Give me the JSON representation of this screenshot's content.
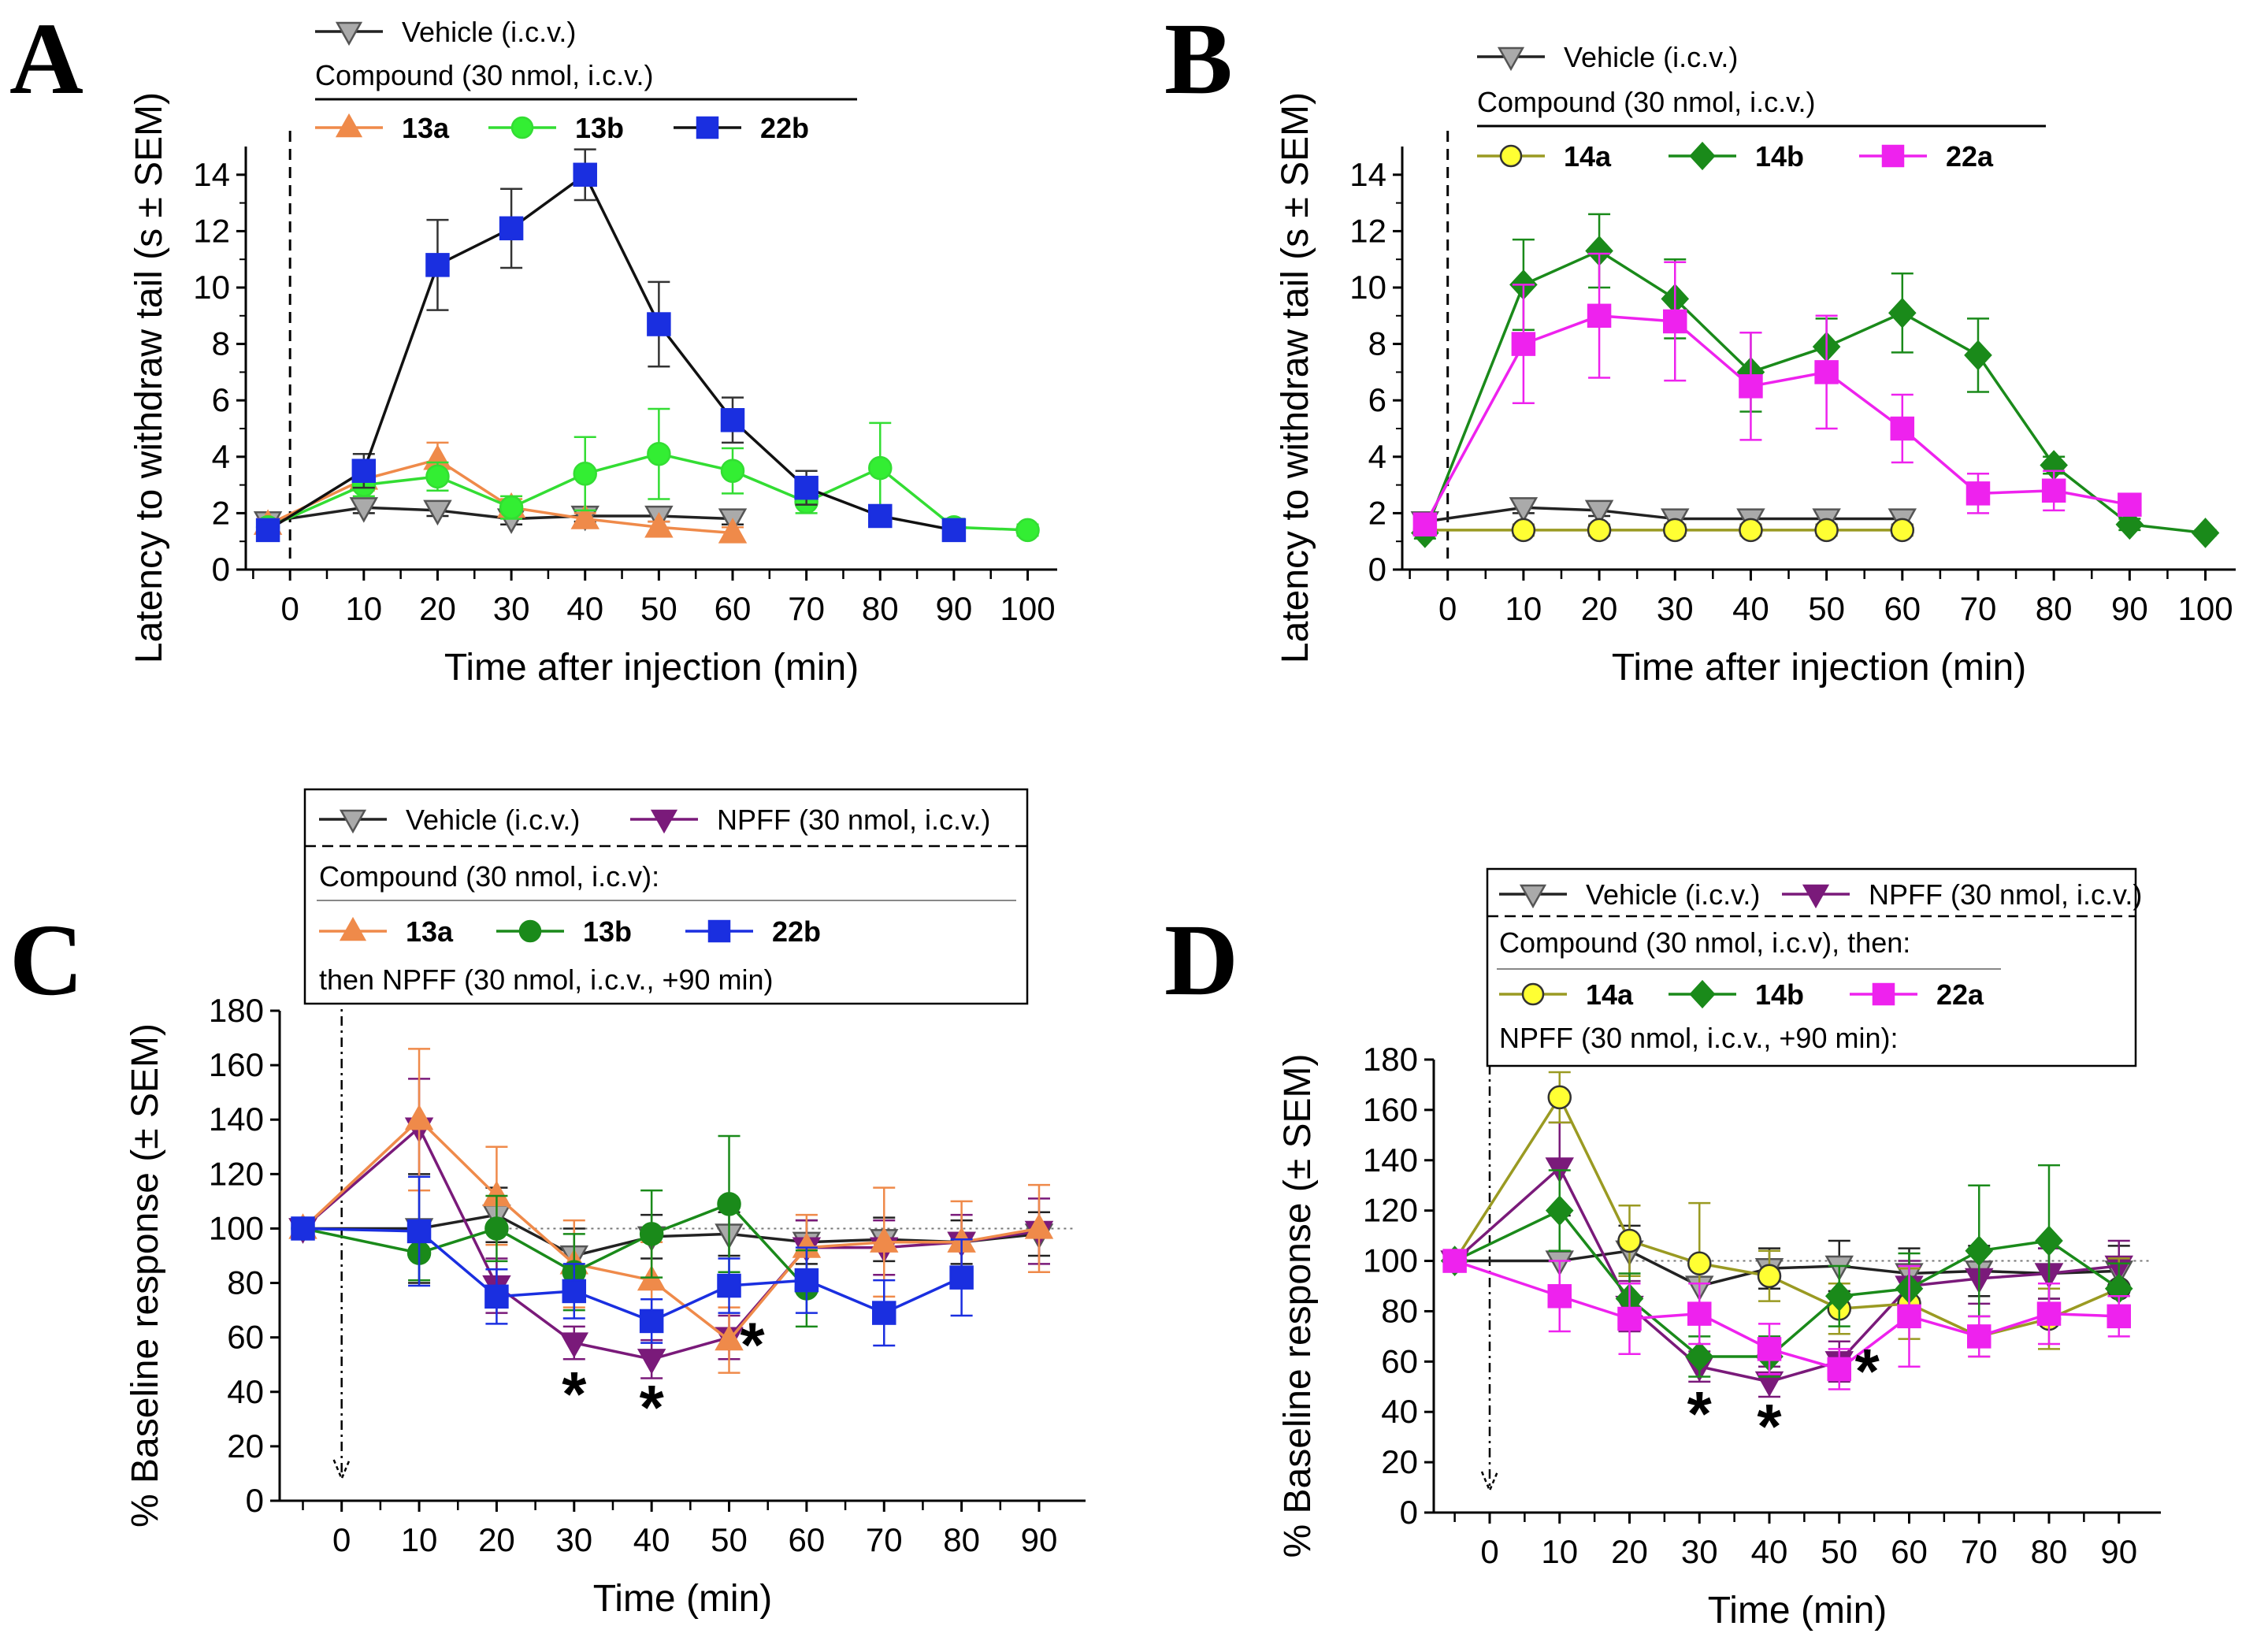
{
  "chart_data": [
    {
      "id": "A",
      "type": "line",
      "panel_label": "A",
      "xlabel": "Time after injection (min)",
      "ylabel": "Latency to withdraw tail (s ± SEM)",
      "xlim": [
        -6,
        104
      ],
      "ylim": [
        0,
        15
      ],
      "xticks": [
        0,
        10,
        20,
        30,
        40,
        50,
        60,
        70,
        80,
        90,
        100
      ],
      "yticks": [
        0,
        2,
        4,
        6,
        8,
        10,
        12,
        14
      ],
      "legend_header": "Compound (30 nmol, i.c.v.)",
      "series": [
        {
          "name": "Vehicle (i.c.v.)",
          "color": "#222222",
          "marker": "tri-down",
          "fill": "#aaaaaa",
          "x": [
            -3,
            10,
            20,
            30,
            40,
            50,
            60
          ],
          "y": [
            1.7,
            2.2,
            2.1,
            1.8,
            1.9,
            1.9,
            1.8
          ],
          "err": [
            0.3,
            0.2,
            0.2,
            0.2,
            0.2,
            0.2,
            0.2
          ]
        },
        {
          "name": "13a",
          "color": "#ef8a4a",
          "marker": "tri-up",
          "fill": "#ef8a4a",
          "x": [
            -3,
            10,
            20,
            30,
            40,
            50,
            60
          ],
          "y": [
            1.6,
            3.2,
            3.9,
            2.2,
            1.8,
            1.5,
            1.3
          ],
          "err": [
            0.2,
            0.4,
            0.6,
            0.3,
            0.2,
            0.2,
            0.2
          ]
        },
        {
          "name": "13b",
          "color": "#33dd33",
          "marker": "circle",
          "fill": "#33ee33",
          "x": [
            -3,
            10,
            20,
            30,
            40,
            50,
            60,
            70,
            80,
            90,
            100
          ],
          "y": [
            1.5,
            3.0,
            3.3,
            2.2,
            3.4,
            4.1,
            3.5,
            2.4,
            3.6,
            1.5,
            1.4
          ],
          "err": [
            0.2,
            0.4,
            0.5,
            0.4,
            1.3,
            1.6,
            0.8,
            0.4,
            1.6,
            0.3,
            0.2
          ]
        },
        {
          "name": "22b",
          "color": "#1a2fe0",
          "marker": "square",
          "fill": "#1a2fe0",
          "line": "#111111",
          "x": [
            -3,
            10,
            20,
            30,
            40,
            50,
            60,
            70,
            80,
            90
          ],
          "y": [
            1.4,
            3.5,
            10.8,
            12.1,
            14.0,
            8.7,
            5.3,
            2.9,
            1.9,
            1.4
          ],
          "err": [
            0.3,
            0.6,
            1.6,
            1.4,
            0.9,
            1.5,
            0.8,
            0.6,
            0.3,
            0.2
          ]
        }
      ]
    },
    {
      "id": "B",
      "type": "line",
      "panel_label": "B",
      "xlabel": "Time after injection (min)",
      "ylabel": "Latency to withdraw tail (s ± SEM)",
      "xlim": [
        -6,
        104
      ],
      "ylim": [
        0,
        15
      ],
      "xticks": [
        0,
        10,
        20,
        30,
        40,
        50,
        60,
        70,
        80,
        90,
        100
      ],
      "yticks": [
        0,
        2,
        4,
        6,
        8,
        10,
        12,
        14
      ],
      "legend_header": "Compound (30 nmol, i.c.v.)",
      "series": [
        {
          "name": "Vehicle (i.c.v.)",
          "color": "#222222",
          "marker": "tri-down",
          "fill": "#aaaaaa",
          "x": [
            -3,
            10,
            20,
            30,
            40,
            50,
            60
          ],
          "y": [
            1.7,
            2.2,
            2.1,
            1.8,
            1.8,
            1.8,
            1.8
          ],
          "err": [
            0.3,
            0.2,
            0.2,
            0.2,
            0.2,
            0.2,
            0.2
          ]
        },
        {
          "name": "14a",
          "color": "#9a9a22",
          "marker": "circle",
          "fill": "#ffff33",
          "x": [
            -3,
            10,
            20,
            30,
            40,
            50,
            60
          ],
          "y": [
            1.4,
            1.4,
            1.4,
            1.4,
            1.4,
            1.4,
            1.4
          ],
          "err": [
            0.1,
            0.2,
            0.2,
            0.2,
            0.2,
            0.2,
            0.2
          ]
        },
        {
          "name": "14b",
          "color": "#1a8a1a",
          "marker": "diamond",
          "fill": "#1a8a1a",
          "x": [
            -3,
            10,
            20,
            30,
            40,
            50,
            60,
            70,
            80,
            90,
            100
          ],
          "y": [
            1.3,
            10.1,
            11.3,
            9.6,
            7.0,
            7.9,
            9.1,
            7.6,
            3.7,
            1.6,
            1.3
          ],
          "err": [
            0.2,
            1.6,
            1.3,
            1.4,
            1.4,
            1.0,
            1.4,
            1.3,
            0.3,
            0.2,
            0.1
          ]
        },
        {
          "name": "22a",
          "color": "#ee22ee",
          "marker": "square",
          "fill": "#ee22ee",
          "x": [
            -3,
            10,
            20,
            30,
            40,
            50,
            60,
            70,
            80,
            90
          ],
          "y": [
            1.6,
            8.0,
            9.0,
            8.8,
            6.5,
            7.0,
            5.0,
            2.7,
            2.8,
            2.3
          ],
          "err": [
            0.2,
            2.1,
            2.2,
            2.1,
            1.9,
            2.0,
            1.2,
            0.7,
            0.7,
            0.3
          ]
        }
      ]
    },
    {
      "id": "C",
      "type": "line",
      "panel_label": "C",
      "xlabel": "Time (min)",
      "ylabel": "% Baseline response (± SEM)",
      "xlim": [
        -8,
        96
      ],
      "ylim": [
        0,
        180
      ],
      "xticks": [
        0,
        10,
        20,
        30,
        40,
        50,
        60,
        70,
        80,
        90
      ],
      "yticks": [
        0,
        20,
        40,
        60,
        80,
        100,
        120,
        140,
        160,
        180
      ],
      "legend_header": "Compound (30 nmol, i.c.v):",
      "legend_footer": "then NPFF (30 nmol, i.c.v., +90 min)",
      "reference_line": 100,
      "asterisks": [
        {
          "x": 30,
          "y": 40,
          "text": "*"
        },
        {
          "x": 40,
          "y": 35,
          "text": "*"
        },
        {
          "x": 53,
          "y": 58,
          "text": "*"
        }
      ],
      "series": [
        {
          "name": "Vehicle (i.c.v.)",
          "color": "#222222",
          "marker": "tri-down",
          "fill": "#aaaaaa",
          "x": [
            -5,
            10,
            20,
            30,
            40,
            50,
            60,
            70,
            80,
            90
          ],
          "y": [
            100,
            100,
            105,
            90,
            97,
            98,
            95,
            96,
            95,
            98
          ],
          "err": [
            2,
            20,
            10,
            10,
            8,
            8,
            8,
            8,
            8,
            8
          ]
        },
        {
          "name": "NPFF (30 nmol, i.c.v.)",
          "color": "#7a1a7a",
          "marker": "tri-down",
          "fill": "#7a1a7a",
          "x": [
            -5,
            10,
            20,
            30,
            40,
            50,
            60,
            70,
            80,
            90
          ],
          "y": [
            100,
            137,
            79,
            58,
            52,
            60,
            93,
            93,
            95,
            99
          ],
          "err": [
            2,
            18,
            10,
            6,
            7,
            8,
            10,
            10,
            10,
            12
          ]
        },
        {
          "name": "13a",
          "color": "#ef8a4a",
          "marker": "tri-up",
          "fill": "#ef8a4a",
          "x": [
            -5,
            10,
            20,
            30,
            40,
            50,
            60,
            70,
            80,
            90
          ],
          "y": [
            100,
            140,
            112,
            87,
            81,
            59,
            93,
            95,
            95,
            100
          ],
          "err": [
            2,
            26,
            18,
            16,
            14,
            12,
            12,
            20,
            15,
            16
          ]
        },
        {
          "name": "13b",
          "color": "#1a8a1a",
          "marker": "circle",
          "fill": "#1a8a1a",
          "x": [
            -5,
            10,
            20,
            30,
            40,
            50,
            60
          ],
          "y": [
            100,
            91,
            100,
            84,
            98,
            109,
            78
          ],
          "err": [
            2,
            10,
            12,
            14,
            16,
            25,
            14
          ]
        },
        {
          "name": "22b",
          "color": "#1a2fe0",
          "marker": "square",
          "fill": "#1a2fe0",
          "x": [
            -5,
            10,
            20,
            30,
            40,
            50,
            60,
            70,
            80
          ],
          "y": [
            100,
            99,
            75,
            77,
            66,
            79,
            81,
            69,
            82
          ],
          "err": [
            2,
            20,
            10,
            10,
            8,
            10,
            12,
            12,
            14
          ]
        }
      ]
    },
    {
      "id": "D",
      "type": "line",
      "panel_label": "D",
      "xlabel": "Time (min)",
      "ylabel": "% Baseline response (± SEM)",
      "xlim": [
        -8,
        96
      ],
      "ylim": [
        0,
        180
      ],
      "xticks": [
        0,
        10,
        20,
        30,
        40,
        50,
        60,
        70,
        80,
        90
      ],
      "yticks": [
        0,
        20,
        40,
        60,
        80,
        100,
        120,
        140,
        160,
        180
      ],
      "legend_header": "Compound (30 nmol, i.c.v), then:",
      "legend_footer": "NPFF (30 nmol, i.c.v., +90 min):",
      "reference_line": 100,
      "asterisks": [
        {
          "x": 30,
          "y": 40,
          "text": "*"
        },
        {
          "x": 40,
          "y": 35,
          "text": "*"
        },
        {
          "x": 54,
          "y": 57,
          "text": "*"
        }
      ],
      "series": [
        {
          "name": "Vehicle (i.c.v.)",
          "color": "#222222",
          "marker": "tri-down",
          "fill": "#aaaaaa",
          "x": [
            -5,
            10,
            20,
            30,
            40,
            50,
            60,
            70,
            80,
            90
          ],
          "y": [
            100,
            100,
            104,
            90,
            97,
            98,
            95,
            96,
            95,
            96
          ],
          "err": [
            2,
            18,
            10,
            10,
            8,
            10,
            10,
            10,
            10,
            10
          ]
        },
        {
          "name": "NPFF (30 nmol, i.c.v.)",
          "color": "#7a1a7a",
          "marker": "tri-down",
          "fill": "#7a1a7a",
          "x": [
            -5,
            10,
            20,
            30,
            40,
            50,
            60,
            70,
            80,
            90
          ],
          "y": [
            100,
            137,
            82,
            58,
            52,
            60,
            90,
            93,
            95,
            98
          ],
          "err": [
            2,
            18,
            10,
            6,
            6,
            8,
            10,
            10,
            10,
            10
          ]
        },
        {
          "name": "14a",
          "color": "#9a9a22",
          "marker": "circle",
          "fill": "#ffff33",
          "x": [
            -5,
            10,
            20,
            30,
            40,
            50,
            60,
            70,
            80,
            90
          ],
          "y": [
            100,
            165,
            108,
            99,
            94,
            81,
            83,
            70,
            77,
            89
          ],
          "err": [
            2,
            10,
            14,
            24,
            10,
            10,
            14,
            8,
            12,
            12
          ]
        },
        {
          "name": "14b",
          "color": "#1a8a1a",
          "marker": "diamond",
          "fill": "#1a8a1a",
          "x": [
            -5,
            10,
            20,
            30,
            40,
            50,
            60,
            70,
            80,
            90
          ],
          "y": [
            100,
            120,
            85,
            62,
            62,
            86,
            89,
            104,
            108,
            89
          ],
          "err": [
            2,
            16,
            10,
            8,
            8,
            12,
            14,
            26,
            30,
            10
          ]
        },
        {
          "name": "22a",
          "color": "#ee22ee",
          "marker": "square",
          "fill": "#ee22ee",
          "x": [
            -5,
            10,
            20,
            30,
            40,
            50,
            60,
            70,
            80,
            90
          ],
          "y": [
            100,
            86,
            77,
            79,
            65,
            57,
            78,
            70,
            79,
            78
          ],
          "err": [
            2,
            14,
            14,
            12,
            10,
            8,
            20,
            8,
            12,
            8
          ]
        }
      ]
    }
  ]
}
